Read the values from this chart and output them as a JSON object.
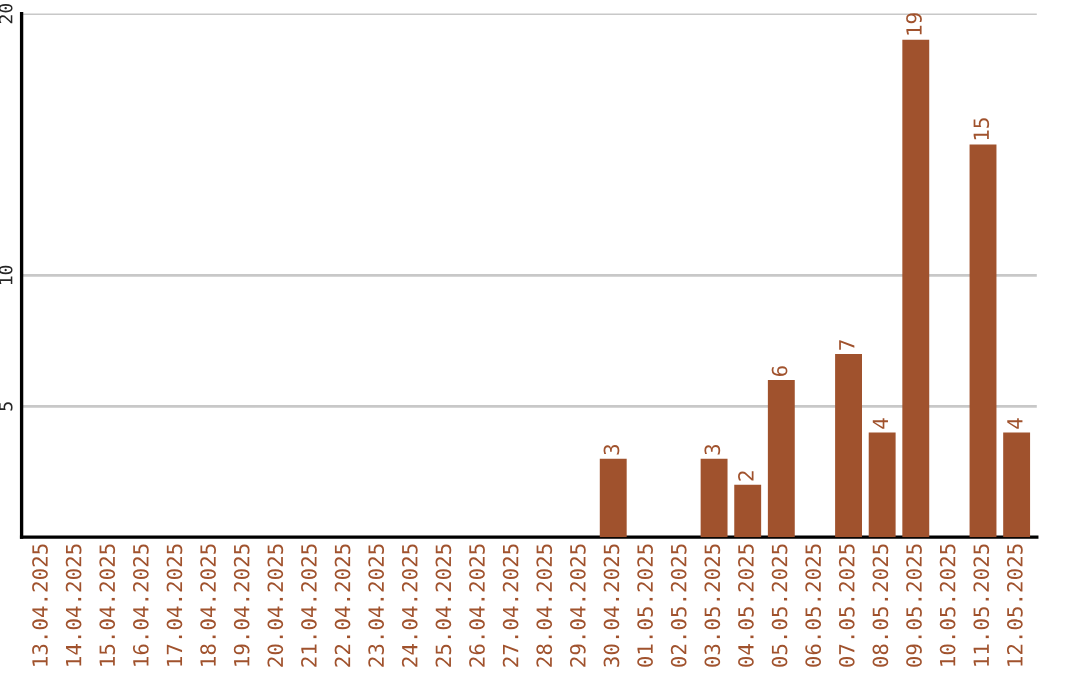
{
  "chart_data": {
    "type": "bar",
    "categories": [
      "13.04.2025",
      "14.04.2025",
      "15.04.2025",
      "16.04.2025",
      "17.04.2025",
      "18.04.2025",
      "19.04.2025",
      "20.04.2025",
      "21.04.2025",
      "22.04.2025",
      "23.04.2025",
      "24.04.2025",
      "25.04.2025",
      "26.04.2025",
      "27.04.2025",
      "28.04.2025",
      "29.04.2025",
      "30.04.2025",
      "01.05.2025",
      "02.05.2025",
      "03.05.2025",
      "04.05.2025",
      "05.05.2025",
      "06.05.2025",
      "07.05.2025",
      "08.05.2025",
      "09.05.2025",
      "10.05.2025",
      "11.05.2025",
      "12.05.2025"
    ],
    "values": [
      0,
      0,
      0,
      0,
      0,
      0,
      0,
      0,
      0,
      0,
      0,
      0,
      0,
      0,
      0,
      0,
      0,
      3,
      0,
      0,
      3,
      2,
      6,
      0,
      7,
      4,
      19,
      0,
      15,
      4
    ],
    "value_labels": [
      null,
      null,
      null,
      null,
      null,
      null,
      null,
      null,
      null,
      null,
      null,
      null,
      null,
      null,
      null,
      null,
      null,
      "3",
      null,
      null,
      "3",
      "2",
      "6",
      null,
      "7",
      "4",
      "19",
      null,
      "15",
      "4"
    ],
    "color": "#a0522d",
    "ylim": [
      0,
      20
    ],
    "yticks": [
      5,
      10,
      20
    ],
    "grid": "y"
  }
}
